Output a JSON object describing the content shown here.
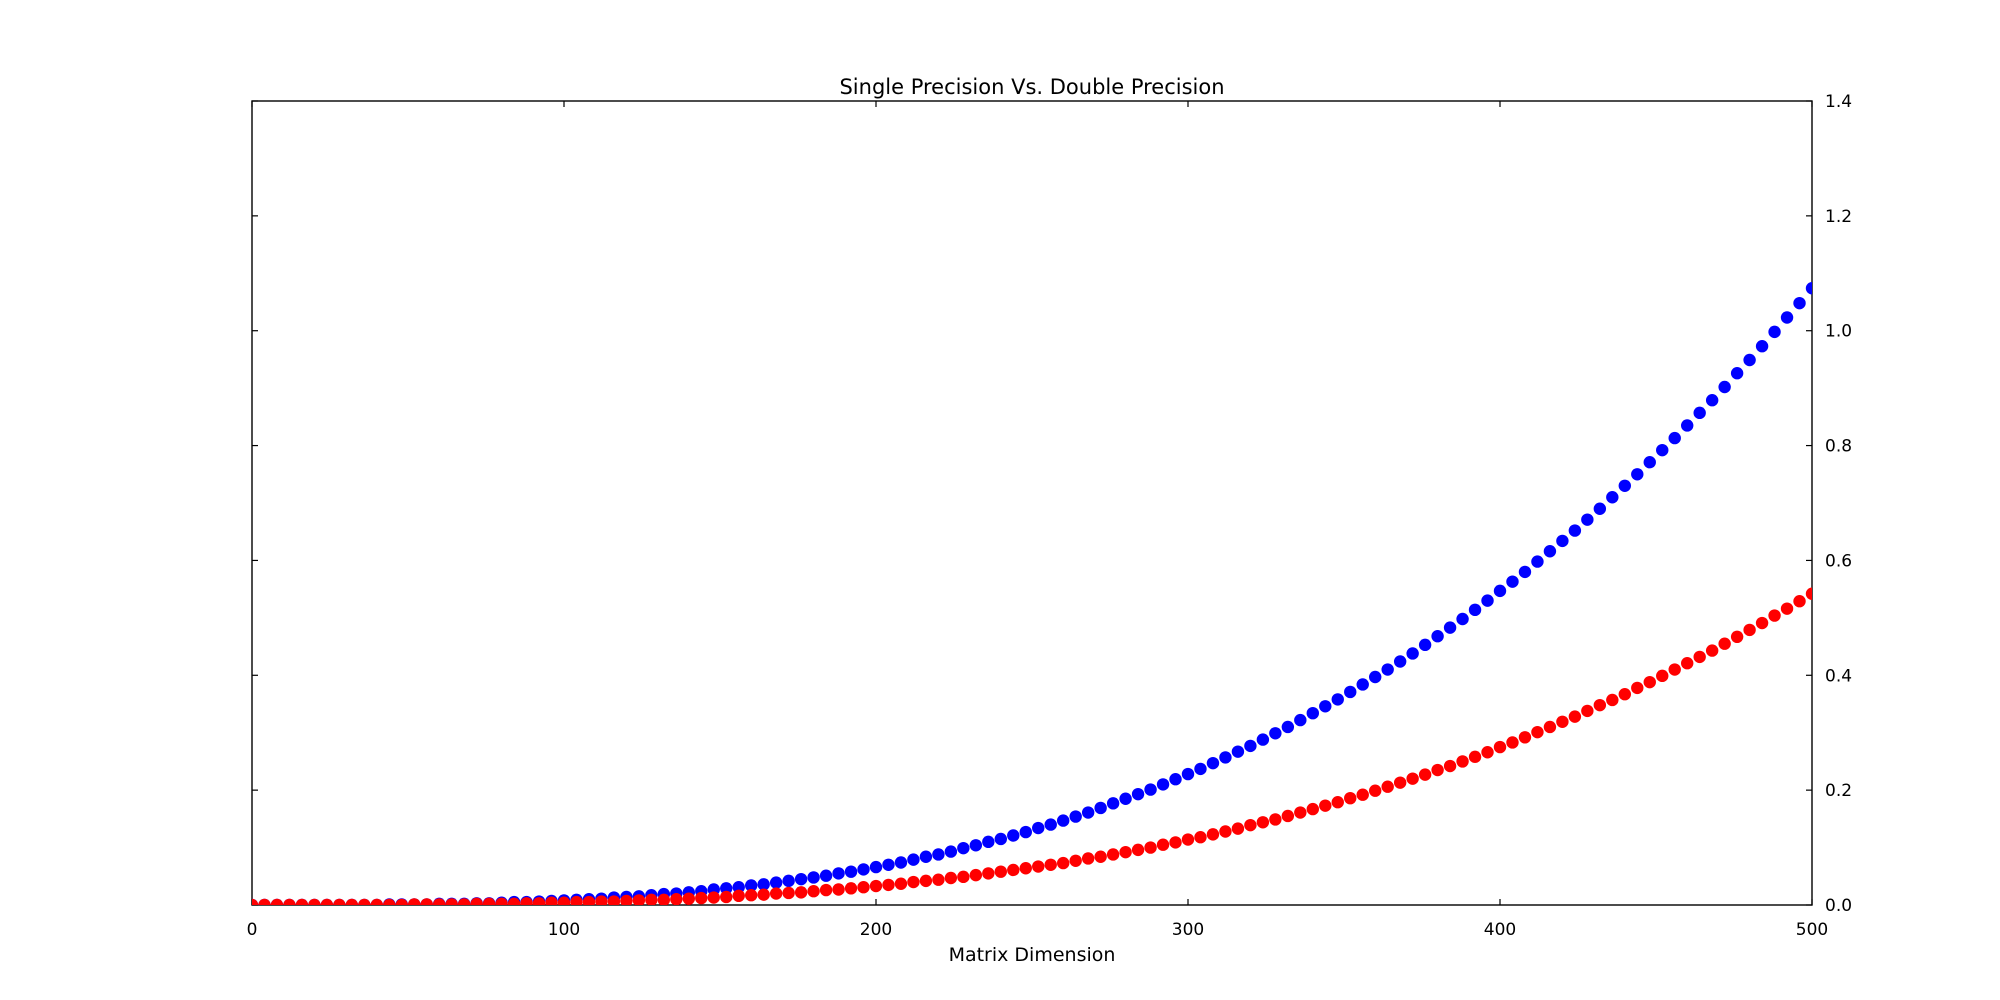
{
  "chart_data": {
    "type": "scatter",
    "title": "Single Precision Vs. Double Precision",
    "xlabel": "Matrix Dimension",
    "ylabel": "",
    "xlim": [
      0,
      500
    ],
    "ylim": [
      0,
      1.4
    ],
    "xticks": [
      0,
      100,
      200,
      300,
      400,
      500
    ],
    "xtick_labels": [
      "0",
      "100",
      "200",
      "300",
      "400",
      "500"
    ],
    "yticks": [
      0,
      0.2,
      0.4,
      0.6,
      0.8,
      1.0,
      1.2,
      1.4
    ],
    "ytick_labels": [
      "0.0",
      "0.2",
      "0.4",
      "0.6",
      "0.8",
      "1.0",
      "1.2",
      "1.4"
    ],
    "y_axis_side": "right",
    "grid": false,
    "legend": "none",
    "series": [
      {
        "color": "#0000ff",
        "x": [
          0,
          4,
          8,
          12,
          16,
          20,
          24,
          28,
          32,
          36,
          40,
          44,
          48,
          52,
          56,
          60,
          64,
          68,
          72,
          76,
          80,
          84,
          88,
          92,
          96,
          100,
          104,
          108,
          112,
          116,
          120,
          124,
          128,
          132,
          136,
          140,
          144,
          148,
          152,
          156,
          160,
          164,
          168,
          172,
          176,
          180,
          184,
          188,
          192,
          196,
          200,
          204,
          208,
          212,
          216,
          220,
          224,
          228,
          232,
          236,
          240,
          244,
          248,
          252,
          256,
          260,
          264,
          268,
          272,
          276,
          280,
          284,
          288,
          292,
          296,
          300,
          304,
          308,
          312,
          316,
          320,
          324,
          328,
          332,
          336,
          340,
          344,
          348,
          352,
          356,
          360,
          364,
          368,
          372,
          376,
          380,
          384,
          388,
          392,
          396,
          400,
          404,
          408,
          412,
          416,
          420,
          424,
          428,
          432,
          436,
          440,
          444,
          448,
          452,
          456,
          460,
          464,
          468,
          472,
          476,
          480,
          484,
          488,
          492,
          496,
          500
        ],
        "y": [
          0,
          0,
          0,
          0,
          0,
          0,
          0,
          0,
          0,
          0,
          0,
          0.001,
          0.001,
          0.001,
          0.001,
          0.002,
          0.002,
          0.002,
          0.003,
          0.003,
          0.004,
          0.005,
          0.005,
          0.006,
          0.007,
          0.008,
          0.009,
          0.01,
          0.011,
          0.013,
          0.014,
          0.015,
          0.017,
          0.019,
          0.02,
          0.022,
          0.024,
          0.027,
          0.029,
          0.031,
          0.034,
          0.036,
          0.039,
          0.042,
          0.045,
          0.048,
          0.051,
          0.055,
          0.058,
          0.062,
          0.066,
          0.07,
          0.074,
          0.079,
          0.084,
          0.088,
          0.093,
          0.099,
          0.104,
          0.11,
          0.115,
          0.121,
          0.127,
          0.134,
          0.14,
          0.147,
          0.154,
          0.161,
          0.169,
          0.177,
          0.185,
          0.193,
          0.201,
          0.21,
          0.219,
          0.228,
          0.237,
          0.247,
          0.257,
          0.267,
          0.277,
          0.288,
          0.299,
          0.31,
          0.322,
          0.334,
          0.346,
          0.358,
          0.371,
          0.384,
          0.397,
          0.41,
          0.424,
          0.438,
          0.453,
          0.468,
          0.483,
          0.498,
          0.514,
          0.53,
          0.547,
          0.563,
          0.58,
          0.598,
          0.616,
          0.634,
          0.652,
          0.671,
          0.69,
          0.71,
          0.73,
          0.75,
          0.771,
          0.792,
          0.813,
          0.835,
          0.857,
          0.879,
          0.902,
          0.926,
          0.949,
          0.973,
          0.998,
          1.023,
          1.048,
          1.074
        ]
      },
      {
        "color": "#ff0000",
        "x": [
          0,
          4,
          8,
          12,
          16,
          20,
          24,
          28,
          32,
          36,
          40,
          44,
          48,
          52,
          56,
          60,
          64,
          68,
          72,
          76,
          80,
          84,
          88,
          92,
          96,
          100,
          104,
          108,
          112,
          116,
          120,
          124,
          128,
          132,
          136,
          140,
          144,
          148,
          152,
          156,
          160,
          164,
          168,
          172,
          176,
          180,
          184,
          188,
          192,
          196,
          200,
          204,
          208,
          212,
          216,
          220,
          224,
          228,
          232,
          236,
          240,
          244,
          248,
          252,
          256,
          260,
          264,
          268,
          272,
          276,
          280,
          284,
          288,
          292,
          296,
          300,
          304,
          308,
          312,
          316,
          320,
          324,
          328,
          332,
          336,
          340,
          344,
          348,
          352,
          356,
          360,
          364,
          368,
          372,
          376,
          380,
          384,
          388,
          392,
          396,
          400,
          404,
          408,
          412,
          416,
          420,
          424,
          428,
          432,
          436,
          440,
          444,
          448,
          452,
          456,
          460,
          464,
          468,
          472,
          476,
          480,
          484,
          488,
          492,
          496,
          500
        ],
        "y": [
          0,
          0,
          0,
          0,
          0,
          0,
          0,
          0,
          0,
          0,
          0,
          0,
          0,
          0.001,
          0.001,
          0.001,
          0.001,
          0.001,
          0.002,
          0.002,
          0.002,
          0.002,
          0.003,
          0.003,
          0.004,
          0.004,
          0.005,
          0.005,
          0.006,
          0.006,
          0.007,
          0.008,
          0.009,
          0.009,
          0.01,
          0.011,
          0.012,
          0.013,
          0.014,
          0.016,
          0.017,
          0.018,
          0.02,
          0.021,
          0.022,
          0.024,
          0.026,
          0.027,
          0.029,
          0.031,
          0.033,
          0.035,
          0.037,
          0.04,
          0.042,
          0.044,
          0.047,
          0.049,
          0.052,
          0.055,
          0.058,
          0.061,
          0.064,
          0.067,
          0.07,
          0.073,
          0.077,
          0.081,
          0.084,
          0.088,
          0.092,
          0.096,
          0.1,
          0.105,
          0.109,
          0.114,
          0.118,
          0.123,
          0.128,
          0.133,
          0.139,
          0.144,
          0.149,
          0.155,
          0.161,
          0.167,
          0.173,
          0.179,
          0.186,
          0.192,
          0.199,
          0.206,
          0.213,
          0.22,
          0.227,
          0.235,
          0.242,
          0.25,
          0.258,
          0.266,
          0.275,
          0.283,
          0.292,
          0.301,
          0.31,
          0.319,
          0.328,
          0.338,
          0.348,
          0.357,
          0.367,
          0.378,
          0.388,
          0.399,
          0.41,
          0.421,
          0.432,
          0.443,
          0.455,
          0.467,
          0.479,
          0.491,
          0.504,
          0.516,
          0.529,
          0.542
        ]
      }
    ]
  }
}
